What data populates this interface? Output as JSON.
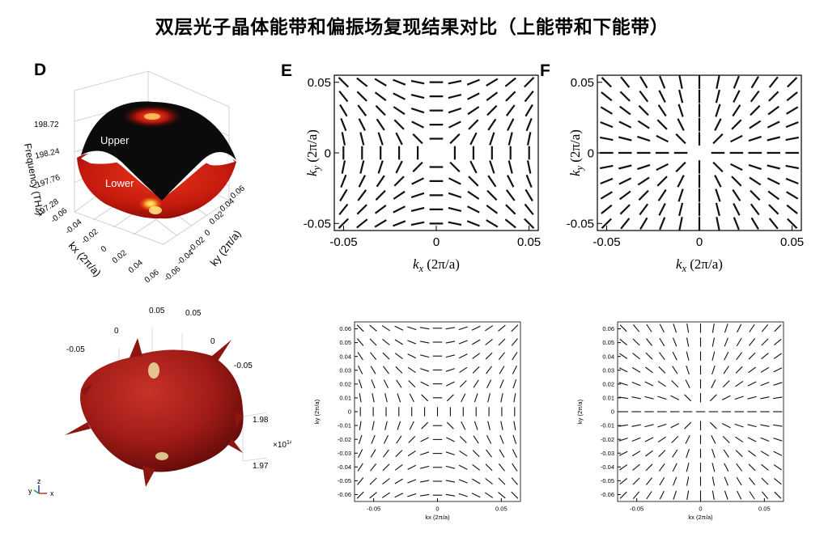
{
  "title": "双层光子晶体能带和偏振场复现结果对比（上能带和下能带）",
  "panel_labels": {
    "d": "D",
    "e": "E",
    "f": "F"
  },
  "band3d_top": {
    "z_axis_label": "Frequency (THz)",
    "z_ticks": [
      "198.72",
      "198.24",
      "197.76",
      "197.28"
    ],
    "kx_axis_label": "kx (2π/a)",
    "kx_ticks": [
      "-0.06",
      "-0.04",
      "-0.02",
      "0",
      "0.02",
      "0.04",
      "0.06"
    ],
    "ky_axis_label": "ky (2π/a)",
    "ky_ticks": [
      "0.06",
      "0.04",
      "0.02",
      "0",
      "-0.02",
      "-0.04",
      "-0.06"
    ],
    "upper_label": "Upper",
    "lower_label": "Lower",
    "colors": {
      "upper": "#0b0b0b",
      "lower": "#cc1a0e",
      "hot": "#ffd35a"
    }
  },
  "band3d_bottom": {
    "tick_labels": [
      "-0.05",
      "0",
      "0.05",
      "0.05",
      "0",
      "-0.05"
    ],
    "z_ticks": [
      "1.98",
      "1.97"
    ],
    "z_multiplier": "×10",
    "z_multiplier_exp": "14",
    "triad": {
      "y": "y",
      "z": "z",
      "x": "x"
    },
    "colors": {
      "surface": "#a8201b",
      "highlight": "#e9e2a0",
      "triad_y": "#2a9a2a",
      "triad_z": "#2a40c8",
      "triad_x": "#c82a2a"
    }
  },
  "chart_data": [
    {
      "panel": "E",
      "type": "scatter",
      "description_visible": "polarization field quiver, upper band",
      "xlabel_var": "k",
      "xlabel_sub": "x",
      "xlabel_unit": "(2π/a)",
      "ylabel_var": "k",
      "ylabel_sub": "y",
      "ylabel_unit": "(2π/a)",
      "xlim": [
        -0.055,
        0.055
      ],
      "ylim": [
        -0.055,
        0.055
      ],
      "x_ticks": [
        "-0.05",
        "0",
        "0.05"
      ],
      "y_ticks": [
        "0.05",
        "0",
        "-0.05"
      ],
      "grid_n": 11,
      "pattern": "hyperbolic",
      "center_gap": true
    },
    {
      "panel": "F",
      "type": "scatter",
      "description_visible": "polarization field quiver, lower band",
      "xlabel_var": "k",
      "xlabel_sub": "x",
      "xlabel_unit": "(2π/a)",
      "ylabel_var": "k",
      "ylabel_sub": "y",
      "ylabel_unit": "(2π/a)",
      "xlim": [
        -0.055,
        0.055
      ],
      "ylim": [
        -0.055,
        0.055
      ],
      "x_ticks": [
        "-0.05",
        "0",
        "0.05"
      ],
      "y_ticks": [
        "0.05",
        "0",
        "-0.05"
      ],
      "grid_n": 11,
      "pattern": "radial",
      "center_gap": true
    },
    {
      "panel": "E-reproduction",
      "type": "scatter",
      "xlabel": "kx (2π/a)",
      "ylabel": "ky (2π/a)",
      "xlim": [
        -0.065,
        0.065
      ],
      "ylim": [
        -0.065,
        0.065
      ],
      "x_ticks": [
        "-0.05",
        "0",
        "0.05"
      ],
      "y_ticks": [
        "0.06",
        "0.05",
        "0.04",
        "0.03",
        "0.02",
        "0.01",
        "0",
        "-0.01",
        "-0.02",
        "-0.03",
        "-0.04",
        "-0.05",
        "-0.06"
      ],
      "grid_n": 13,
      "pattern": "hyperbolic"
    },
    {
      "panel": "F-reproduction",
      "type": "scatter",
      "xlabel": "kx (2π/a)",
      "ylabel": "ky (2π/a)",
      "xlim": [
        -0.065,
        0.065
      ],
      "ylim": [
        -0.065,
        0.065
      ],
      "x_ticks": [
        "-0.05",
        "0",
        "0.05"
      ],
      "y_ticks": [
        "0.06",
        "0.05",
        "0.04",
        "0.03",
        "0.02",
        "0.01",
        "0",
        "-0.01",
        "-0.02",
        "-0.03",
        "-0.04",
        "-0.05",
        "-0.06"
      ],
      "grid_n": 13,
      "pattern": "radial"
    }
  ]
}
